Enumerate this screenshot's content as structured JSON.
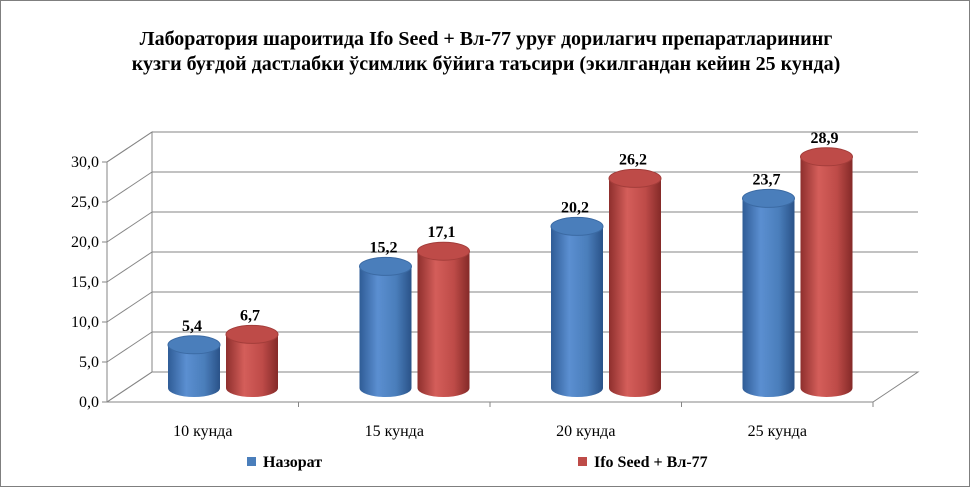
{
  "chart_data": {
    "type": "bar",
    "title_lines": [
      "Лаборатория шароитида Ifo Seed + Вл-77 уруғ дорилагич препаратларининг",
      "кузги буғдой дастлабки ўсимлик бўйига таъсири (экилгандан кейин 25 кунда)"
    ],
    "categories": [
      "10 кунда",
      "15 кунда",
      "20 кунда",
      "25 кунда"
    ],
    "series": [
      {
        "name": "Назорат",
        "values": [
          5.4,
          15.2,
          20.2,
          23.7
        ],
        "labels": [
          "5,4",
          "15,2",
          "20,2",
          "23,7"
        ],
        "color": "#4a7ebb"
      },
      {
        "name": "Ifo Seed + Вл-77",
        "values": [
          6.7,
          17.1,
          26.2,
          28.9
        ],
        "labels": [
          "6,7",
          "17,1",
          "26,2",
          "28,9"
        ],
        "color": "#be4b48"
      }
    ],
    "yticks": [
      "0,0",
      "5,0",
      "10,0",
      "15,0",
      "20,0",
      "25,0",
      "30,0"
    ],
    "ylim": [
      0,
      30
    ],
    "grid": true,
    "legend_position": "bottom",
    "style": "3d-cylinder"
  }
}
